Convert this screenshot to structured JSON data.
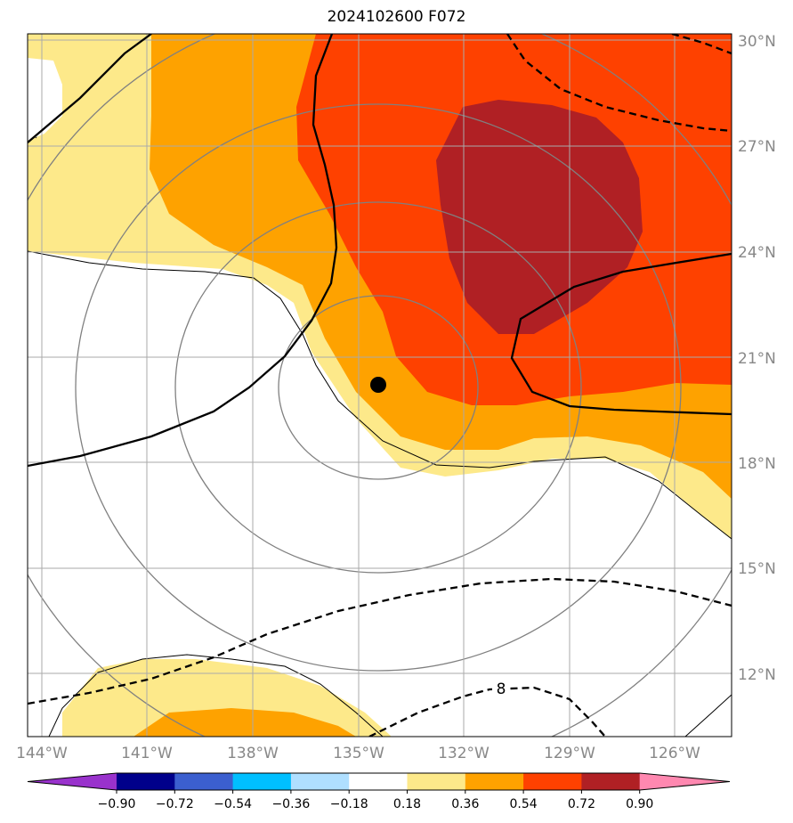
{
  "title": "2024102600 F072",
  "map": {
    "lat_labels": [
      "30°N",
      "27°N",
      "24°N",
      "21°N",
      "18°N",
      "15°N",
      "12°N"
    ],
    "lon_labels": [
      "144°W",
      "141°W",
      "138°W",
      "135°W",
      "132°W",
      "129°W",
      "126°W"
    ],
    "contour_label": "8",
    "storm_marker": "filled-circle",
    "colors": {
      "pale_yellow": "#fde98a",
      "orange": "#fea200",
      "red_orange": "#fe4100",
      "dark_red": "#b02024",
      "grid": "#aaaaaa",
      "circle": "#808080"
    }
  },
  "colorbar": {
    "tick_labels": [
      "−0.90",
      "−0.72",
      "−0.54",
      "−0.36",
      "−0.18",
      "0.18",
      "0.36",
      "0.54",
      "0.72",
      "0.90"
    ],
    "colors": [
      "#9932cc",
      "#00008b",
      "#3b5fcf",
      "#00bfff",
      "#afdfff",
      "#ffffff",
      "#fde98a",
      "#fea200",
      "#fe4100",
      "#b02024",
      "#ff88b0"
    ]
  }
}
